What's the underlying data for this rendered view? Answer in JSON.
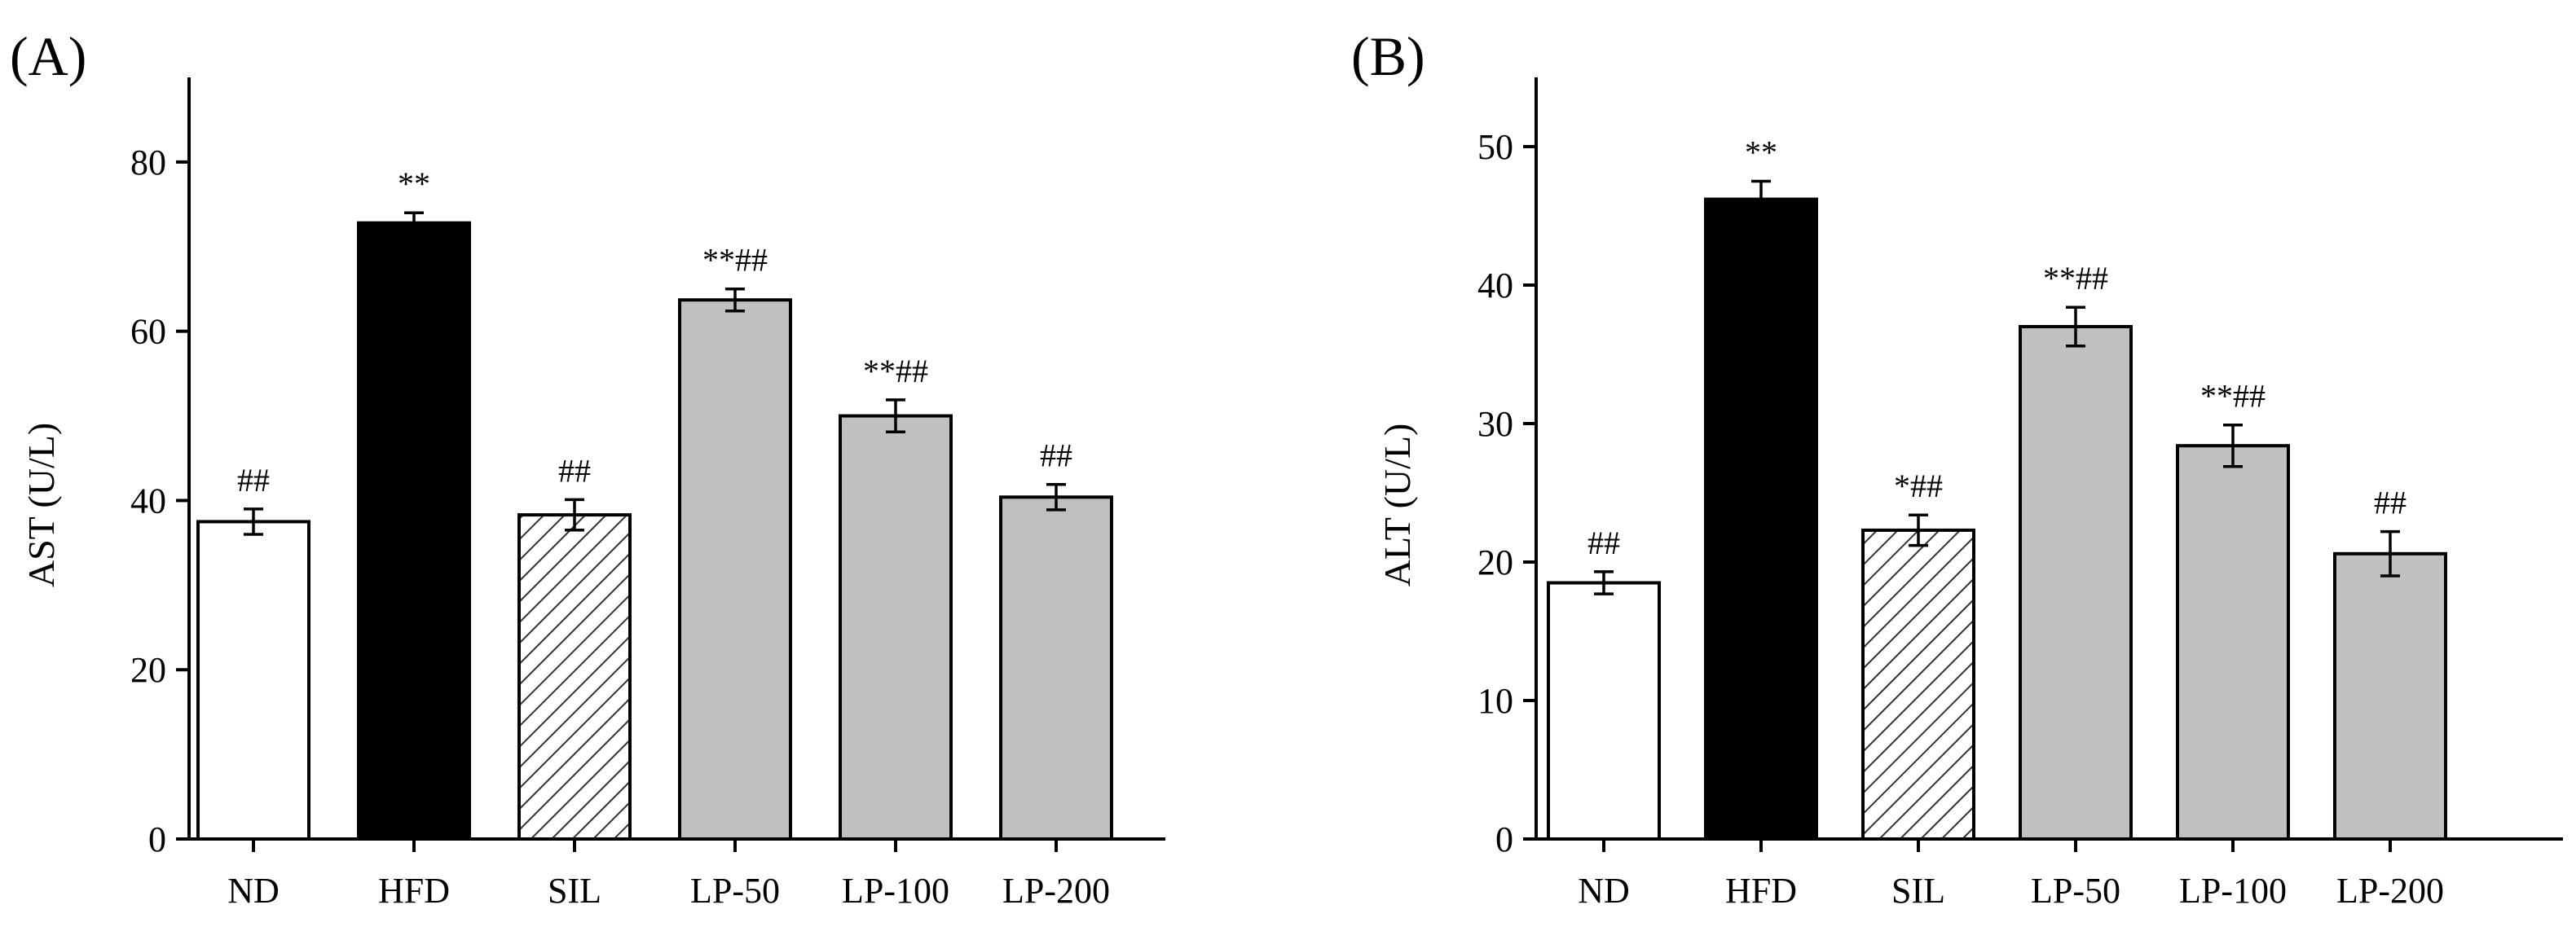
{
  "chart_data": [
    {
      "type": "bar",
      "panel_label": "(A)",
      "ylabel": "AST (U/L)",
      "xlabel": "",
      "categories": [
        "ND",
        "HFD",
        "SIL",
        "LP-50",
        "LP-100",
        "LP-200"
      ],
      "values": [
        37.5,
        72.8,
        38.3,
        63.7,
        50.0,
        40.4
      ],
      "errors": [
        1.5,
        1.2,
        1.8,
        1.3,
        1.9,
        1.5
      ],
      "significance": [
        "##",
        "**",
        "##",
        "**##",
        "**##",
        "##"
      ],
      "fills": [
        "white",
        "black",
        "hatched",
        "gray",
        "gray",
        "gray"
      ],
      "ylim": [
        0,
        90
      ],
      "yticks": [
        0,
        20,
        40,
        60,
        80
      ]
    },
    {
      "type": "bar",
      "panel_label": "(B)",
      "ylabel": "ALT (U/L)",
      "xlabel": "",
      "categories": [
        "ND",
        "HFD",
        "SIL",
        "LP-50",
        "LP-100",
        "LP-200"
      ],
      "values": [
        18.5,
        46.2,
        22.3,
        37.0,
        28.4,
        20.6
      ],
      "errors": [
        0.8,
        1.3,
        1.1,
        1.4,
        1.5,
        1.6
      ],
      "significance": [
        "##",
        "**",
        "*##",
        "**##",
        "**##",
        "##"
      ],
      "fills": [
        "white",
        "black",
        "hatched",
        "gray",
        "gray",
        "gray"
      ],
      "ylim": [
        0,
        55
      ],
      "yticks": [
        0,
        10,
        20,
        30,
        40,
        50
      ]
    }
  ],
  "colors": {
    "white": "#ffffff",
    "black": "#000000",
    "gray": "#c0c0c0",
    "hatch_line": "#333333"
  }
}
